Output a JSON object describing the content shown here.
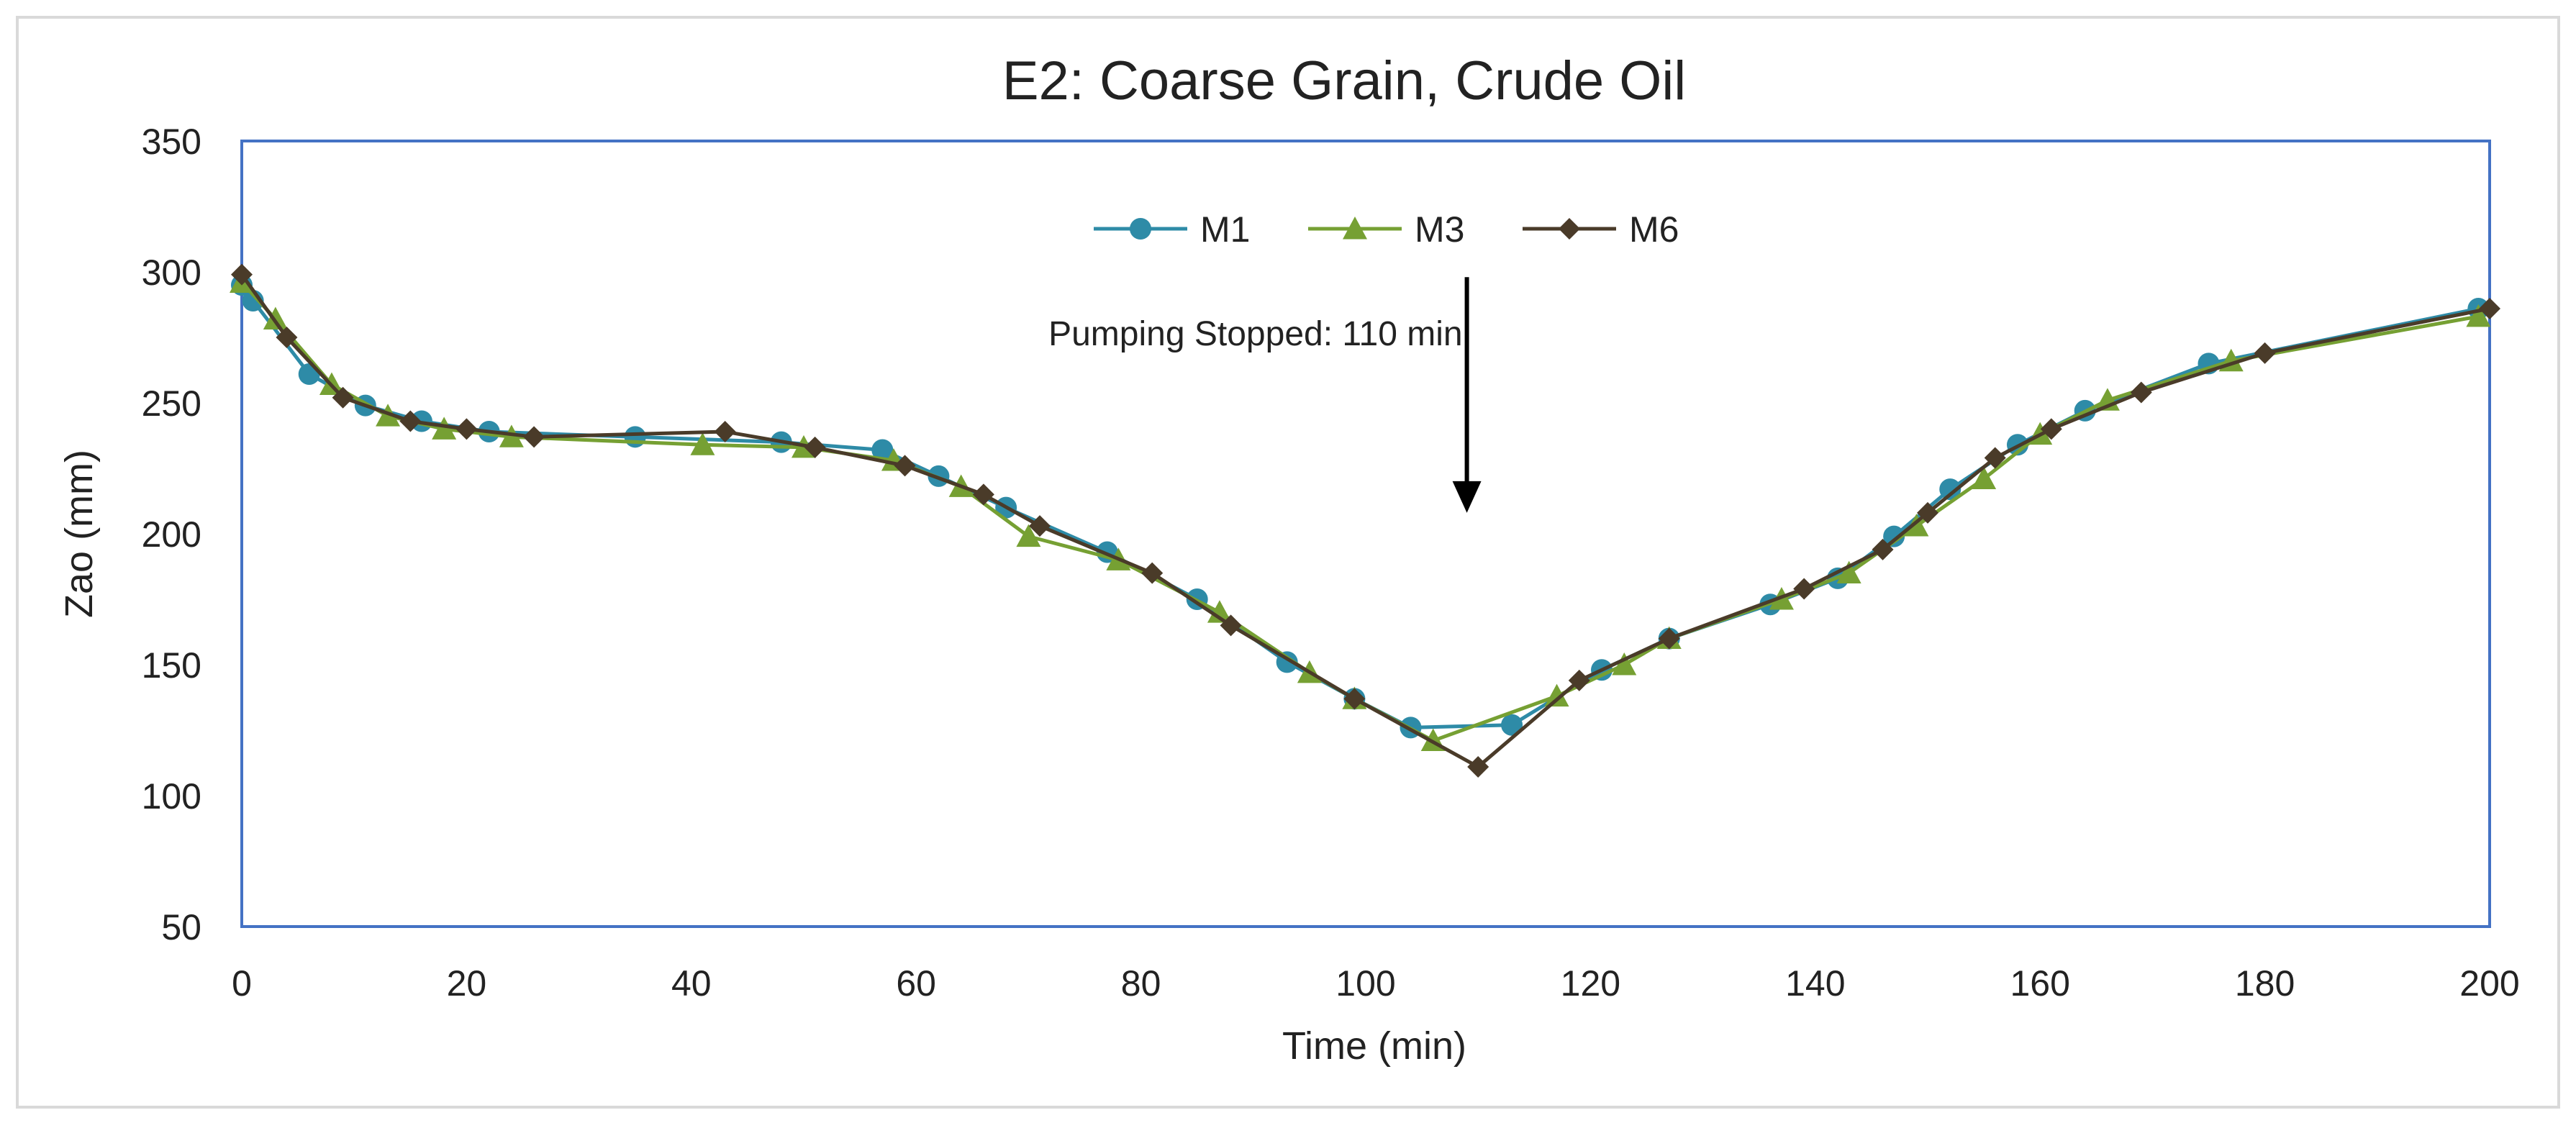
{
  "chart_data": {
    "type": "line",
    "title": "E2: Coarse Grain, Crude Oil",
    "xlabel": "Time (min)",
    "ylabel": "Zao (mm)",
    "xlim": [
      0,
      200
    ],
    "ylim": [
      50,
      350
    ],
    "x_ticks": [
      0,
      20,
      40,
      60,
      80,
      100,
      120,
      140,
      160,
      180,
      200
    ],
    "y_ticks": [
      50,
      100,
      150,
      200,
      250,
      300,
      350
    ],
    "grid": false,
    "legend_position": "top-center",
    "annotation": {
      "text": "Pumping Stopped: 110 min",
      "x": 109,
      "y_from": 298,
      "y_to": 208
    },
    "colors": {
      "M1": "#2e8ba7",
      "M3": "#76a033",
      "M6": "#4a3b29",
      "axis_frame": "#4472c4",
      "text": "#222222"
    },
    "series": [
      {
        "name": "M1",
        "marker": "circle",
        "points": [
          [
            0,
            295
          ],
          [
            1,
            289
          ],
          [
            6,
            261
          ],
          [
            11,
            249
          ],
          [
            16,
            243
          ],
          [
            22,
            239
          ],
          [
            35,
            237
          ],
          [
            48,
            235
          ],
          [
            57,
            232
          ],
          [
            62,
            222
          ],
          [
            68,
            210
          ],
          [
            77,
            193
          ],
          [
            85,
            175
          ],
          [
            93,
            151
          ],
          [
            99,
            137
          ],
          [
            104,
            126
          ],
          [
            113,
            127
          ],
          [
            121,
            148
          ],
          [
            127,
            160
          ],
          [
            136,
            173
          ],
          [
            142,
            183
          ],
          [
            147,
            199
          ],
          [
            152,
            217
          ],
          [
            158,
            234
          ],
          [
            164,
            247
          ],
          [
            175,
            265
          ],
          [
            199,
            286
          ]
        ]
      },
      {
        "name": "M3",
        "marker": "triangle",
        "points": [
          [
            0,
            296
          ],
          [
            3,
            282
          ],
          [
            8,
            257
          ],
          [
            13,
            245
          ],
          [
            18,
            240
          ],
          [
            24,
            237
          ],
          [
            41,
            234
          ],
          [
            50,
            233
          ],
          [
            58,
            228
          ],
          [
            64,
            218
          ],
          [
            70,
            199
          ],
          [
            78,
            190
          ],
          [
            87,
            170
          ],
          [
            95,
            147
          ],
          [
            99,
            137
          ],
          [
            106,
            121
          ],
          [
            117,
            138
          ],
          [
            123,
            150
          ],
          [
            127,
            160
          ],
          [
            137,
            175
          ],
          [
            143,
            185
          ],
          [
            149,
            203
          ],
          [
            155,
            221
          ],
          [
            160,
            238
          ],
          [
            166,
            251
          ],
          [
            177,
            266
          ],
          [
            199,
            283
          ]
        ]
      },
      {
        "name": "M6",
        "marker": "diamond",
        "points": [
          [
            0,
            299
          ],
          [
            4,
            275
          ],
          [
            9,
            252
          ],
          [
            15,
            243
          ],
          [
            20,
            240
          ],
          [
            26,
            237
          ],
          [
            43,
            239
          ],
          [
            51,
            233
          ],
          [
            59,
            226
          ],
          [
            66,
            215
          ],
          [
            71,
            203
          ],
          [
            81,
            185
          ],
          [
            88,
            165
          ],
          [
            99,
            137
          ],
          [
            110,
            111
          ],
          [
            119,
            144
          ],
          [
            127,
            160
          ],
          [
            139,
            179
          ],
          [
            146,
            194
          ],
          [
            150,
            208
          ],
          [
            156,
            229
          ],
          [
            161,
            240
          ],
          [
            169,
            254
          ],
          [
            180,
            269
          ],
          [
            200,
            286
          ]
        ]
      }
    ]
  }
}
